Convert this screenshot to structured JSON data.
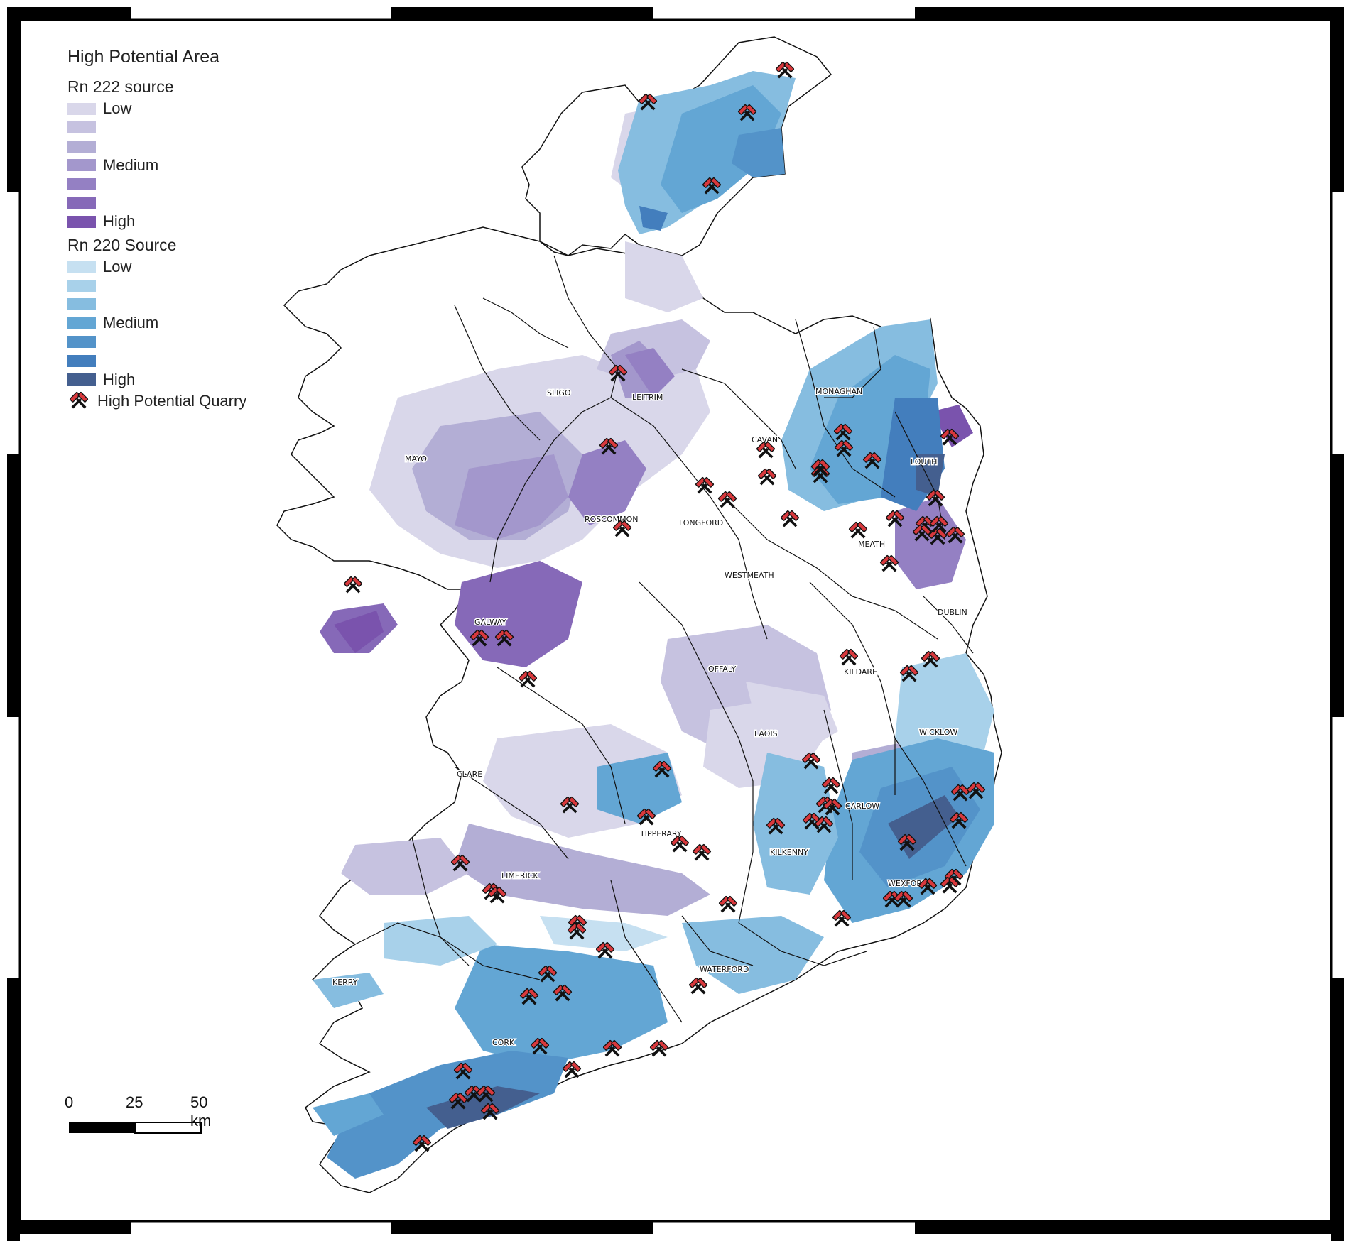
{
  "legend": {
    "title": "High Potential Area",
    "rn222": {
      "heading": "Rn 222 source",
      "items": [
        {
          "label": "Low",
          "color": "#d9d7ea"
        },
        {
          "label": "",
          "color": "#c6c2e0"
        },
        {
          "label": "",
          "color": "#b3aed5"
        },
        {
          "label": "Medium",
          "color": "#a397cc"
        },
        {
          "label": "",
          "color": "#9480c3"
        },
        {
          "label": "",
          "color": "#8669b8"
        },
        {
          "label": "High",
          "color": "#7a53ad"
        }
      ]
    },
    "rn220": {
      "heading": "Rn 220 Source",
      "items": [
        {
          "label": "Low",
          "color": "#c6e0f1"
        },
        {
          "label": "",
          "color": "#a8d1ea"
        },
        {
          "label": "",
          "color": "#86bde0"
        },
        {
          "label": "Medium",
          "color": "#63a6d4"
        },
        {
          "label": "",
          "color": "#5393c9"
        },
        {
          "label": "",
          "color": "#437ebd"
        },
        {
          "label": "High",
          "color": "#445f8f"
        }
      ]
    },
    "quarry_label": "High Potential Quarry",
    "quarry_icon": "crossed-hammers-icon"
  },
  "scalebar": {
    "labels": [
      "0",
      "25",
      "50 km"
    ]
  },
  "counties": [
    "SLIGO",
    "LEITRIM",
    "MONAGHAN",
    "MAYO",
    "CAVAN",
    "LOUTH",
    "ROSCOMMON",
    "LONGFORD",
    "MEATH",
    "WESTMEATH",
    "GALWAY",
    "DUBLIN",
    "KILDARE",
    "OFFALY",
    "WICKLOW",
    "LAOIS",
    "CLARE",
    "CARLOW",
    "TIPPERARY",
    "KILKENNY",
    "LIMERICK",
    "WEXFORD",
    "KERRY",
    "WATERFORD",
    "CORK"
  ],
  "colors": {
    "county_border": "#111111",
    "quarry_head": "#d8383c",
    "quarry_handle": "#111111",
    "frame": "#000000"
  }
}
